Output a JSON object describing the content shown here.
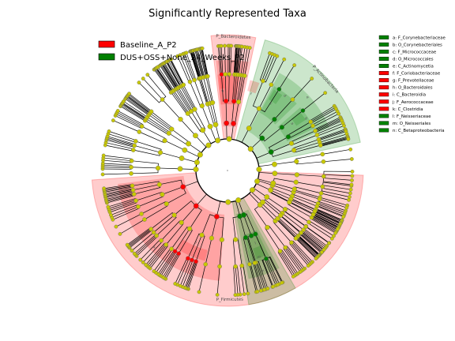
{
  "chart_data": {
    "type": "cladogram",
    "title": "Significantly Represented Taxa",
    "colors": {
      "class_a": "#ff0000",
      "class_b": "#008000",
      "node_default": "#c8c800",
      "shade_a": "#ff0000",
      "shade_b": "#008000"
    },
    "legend": {
      "placement": "upper-left",
      "entries": [
        {
          "label": "Baseline_A_P2",
          "color": "#ff0000"
        },
        {
          "label": "DUS+OSS+None_24_Weeks_P2",
          "color": "#008000"
        }
      ]
    },
    "taxa_legend": {
      "placement": "right",
      "entries": [
        {
          "key": "a",
          "label": "a: F_Corynebacteriaceae",
          "color": "#008000"
        },
        {
          "key": "b",
          "label": "b: O_Corynebacteriales",
          "color": "#008000"
        },
        {
          "key": "c",
          "label": "c: F_Micrococcaceae",
          "color": "#008000"
        },
        {
          "key": "d",
          "label": "d: O_Micrococcales",
          "color": "#008000"
        },
        {
          "key": "e",
          "label": "e: C_Actinomycetia",
          "color": "#008000"
        },
        {
          "key": "f",
          "label": "f: F_Coriobacteriaceae",
          "color": "#ff0000"
        },
        {
          "key": "g",
          "label": "g: F_Prevotellaceae",
          "color": "#ff0000"
        },
        {
          "key": "h",
          "label": "h: O_Bacteroidales",
          "color": "#ff0000"
        },
        {
          "key": "i",
          "label": "i: C_Bacteroidia",
          "color": "#ff0000"
        },
        {
          "key": "j",
          "label": "j: F_Aerococcaceae",
          "color": "#ff0000"
        },
        {
          "key": "k",
          "label": "k: C_Clostridia",
          "color": "#ff0000"
        },
        {
          "key": "l",
          "label": "l: F_Neisseriaceae",
          "color": "#008000"
        },
        {
          "key": "m",
          "label": "m: O_Neisseriales",
          "color": "#008000"
        },
        {
          "key": "n",
          "label": "n: C_Betaproteobacteria",
          "color": "#008000"
        }
      ]
    },
    "phylum_clades": [
      {
        "label": "P_Firmicutes",
        "class": "Baseline_A_P2",
        "start_deg": 92,
        "end_deg": 266
      },
      {
        "label": "P_Bacteroidetes",
        "class": "Baseline_A_P2",
        "start_deg": 353,
        "end_deg": 12
      },
      {
        "label": "P_Actinobacteria",
        "class": "DUS+OSS+None_24_Weeks_P2",
        "start_deg": 16,
        "end_deg": 78
      },
      {
        "label": "",
        "class": "DUS+OSS+None_24_Weeks_P2",
        "start_deg": 150,
        "end_deg": 171
      }
    ],
    "lower_clades": [
      {
        "key": "k",
        "level": 2,
        "class": "Baseline_A_P2",
        "start_deg": 184,
        "end_deg": 263
      },
      {
        "key": "j",
        "level": 4,
        "class": "Baseline_A_P2",
        "start_deg": 194,
        "end_deg": 213
      },
      {
        "key": "i",
        "level": 2,
        "class": "Baseline_A_P2",
        "start_deg": 354,
        "end_deg": 11
      },
      {
        "key": "h",
        "level": 3,
        "class": "Baseline_A_P2",
        "start_deg": 354,
        "end_deg": 7
      },
      {
        "key": "g",
        "level": 4,
        "class": "Baseline_A_P2",
        "start_deg": 355,
        "end_deg": 358
      },
      {
        "key": "f",
        "level": 4,
        "class": "Baseline_A_P2",
        "start_deg": 14,
        "end_deg": 20
      },
      {
        "key": "e",
        "level": 2,
        "class": "DUS+OSS+None_24_Weeks_P2",
        "start_deg": 28,
        "end_deg": 67
      },
      {
        "key": "d",
        "level": 3,
        "class": "DUS+OSS+None_24_Weeks_P2",
        "start_deg": 29,
        "end_deg": 46
      },
      {
        "key": "c",
        "level": 4,
        "class": "DUS+OSS+None_24_Weeks_P2",
        "start_deg": 30,
        "end_deg": 36
      },
      {
        "key": "b",
        "level": 3,
        "class": "DUS+OSS+None_24_Weeks_P2",
        "start_deg": 49,
        "end_deg": 64
      },
      {
        "key": "a",
        "level": 4,
        "class": "DUS+OSS+None_24_Weeks_P2",
        "start_deg": 51,
        "end_deg": 57
      },
      {
        "key": "n",
        "level": 2,
        "class": "DUS+OSS+None_24_Weeks_P2",
        "start_deg": 152,
        "end_deg": 169
      },
      {
        "key": "m",
        "level": 3,
        "class": "DUS+OSS+None_24_Weeks_P2",
        "start_deg": 154,
        "end_deg": 166
      },
      {
        "key": "l",
        "level": 4,
        "class": "DUS+OSS+None_24_Weeks_P2",
        "start_deg": 156,
        "end_deg": 162
      }
    ]
  }
}
